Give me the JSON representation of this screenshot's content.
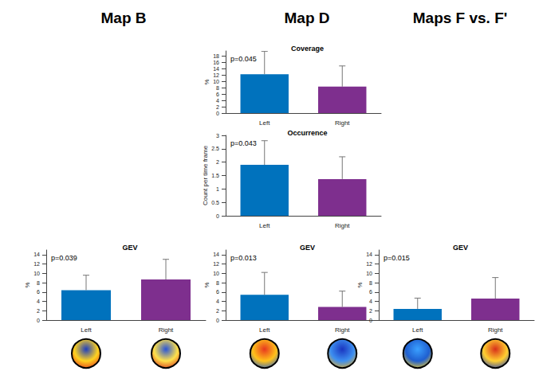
{
  "headings": [
    "Map B",
    "Map D",
    "Maps F vs. F'"
  ],
  "chart_data": [
    {
      "type": "bar",
      "title": "Coverage",
      "annotation": "p=0.045",
      "ylabel": "%",
      "categories": [
        "Left",
        "Right"
      ],
      "values": [
        12.2,
        8.3
      ],
      "errors": [
        7.2,
        6.5
      ],
      "colors": [
        "#0072bd",
        "#7e2f8e"
      ],
      "ylim": [
        0,
        19.5
      ],
      "yticks": [
        0,
        2,
        4,
        6,
        8,
        10,
        12,
        14,
        16,
        18
      ],
      "grid": false
    },
    {
      "type": "bar",
      "title": "Occurrence",
      "annotation": "p=0.043",
      "ylabel": "Count per time frame",
      "categories": [
        "Left",
        "Right"
      ],
      "values": [
        1.9,
        1.37
      ],
      "errors": [
        0.9,
        0.83
      ],
      "colors": [
        "#0072bd",
        "#7e2f8e"
      ],
      "ylim": [
        0,
        3
      ],
      "yticks": [
        0,
        0.5,
        1,
        1.5,
        2,
        2.5,
        3
      ],
      "grid": false
    },
    {
      "type": "bar",
      "title": "GEV",
      "annotation": "p=0.039",
      "ylabel": "%",
      "categories": [
        "Left",
        "Right"
      ],
      "values": [
        6.4,
        8.7
      ],
      "errors": [
        3.2,
        4.3
      ],
      "colors": [
        "#0072bd",
        "#7e2f8e"
      ],
      "ylim": [
        0,
        15
      ],
      "yticks": [
        0,
        2,
        4,
        6,
        8,
        10,
        12,
        14
      ],
      "grid": false
    },
    {
      "type": "bar",
      "title": "GEV",
      "annotation": "p=0.013",
      "ylabel": "%",
      "categories": [
        "Left",
        "Right"
      ],
      "values": [
        5.4,
        2.8
      ],
      "errors": [
        4.8,
        3.4
      ],
      "colors": [
        "#0072bd",
        "#7e2f8e"
      ],
      "ylim": [
        0,
        15
      ],
      "yticks": [
        0,
        2,
        4,
        6,
        8,
        10,
        12,
        14
      ],
      "grid": false
    },
    {
      "type": "bar",
      "title": "GEV",
      "annotation": "p=0.015",
      "ylabel": "%",
      "categories": [
        "Left",
        "Right"
      ],
      "values": [
        2.4,
        4.6
      ],
      "errors": [
        2.3,
        4.5
      ],
      "colors": [
        "#0072bd",
        "#7e2f8e"
      ],
      "ylim": [
        0,
        15
      ],
      "yticks": [
        0,
        2,
        4,
        6,
        8,
        10,
        12,
        14
      ],
      "grid": false
    }
  ]
}
